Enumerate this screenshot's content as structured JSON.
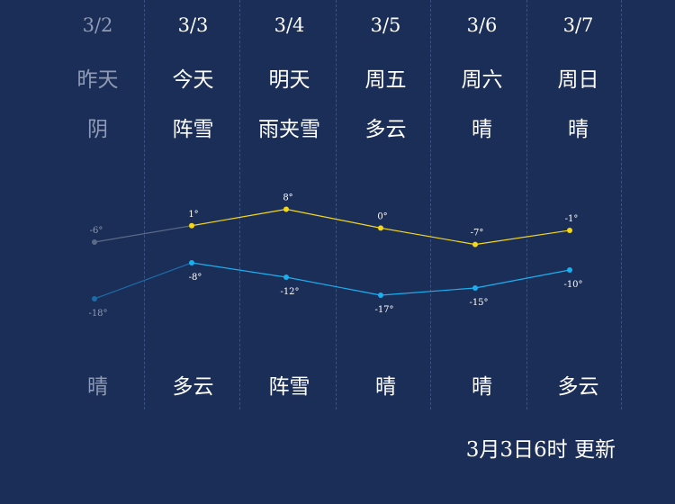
{
  "days": [
    {
      "date": "3/2",
      "name": "昨天",
      "day_cond": "阴",
      "night_cond": "晴",
      "past": true
    },
    {
      "date": "3/3",
      "name": "今天",
      "day_cond": "阵雪",
      "night_cond": "多云",
      "past": false
    },
    {
      "date": "3/4",
      "name": "明天",
      "day_cond": "雨夹雪",
      "night_cond": "阵雪",
      "past": false
    },
    {
      "date": "3/5",
      "name": "周五",
      "day_cond": "多云",
      "night_cond": "晴",
      "past": false
    },
    {
      "date": "3/6",
      "name": "周六",
      "day_cond": "晴",
      "night_cond": "晴",
      "past": false
    },
    {
      "date": "3/7",
      "name": "周日",
      "day_cond": "晴",
      "night_cond": "多云",
      "past": false
    }
  ],
  "chart_data": {
    "type": "line",
    "categories": [
      "3/2",
      "3/3",
      "3/4",
      "3/5",
      "3/6",
      "3/7"
    ],
    "series": [
      {
        "values": [
          -6,
          1,
          8,
          0,
          -7,
          -1
        ],
        "labels": [
          "-6°",
          "1°",
          "8°",
          "0°",
          "-7°",
          "-1°"
        ],
        "color": "#f5d716"
      },
      {
        "values": [
          -18,
          -8,
          -12,
          -17,
          -15,
          -10
        ],
        "labels": [
          "-18°",
          "-8°",
          "-12°",
          "-17°",
          "-15°",
          "-10°"
        ],
        "color": "#1ab0f0"
      }
    ],
    "past_color": "#5b6a86",
    "past_low_color": "#1d6aa8"
  },
  "footer": {
    "updated": "3月3日6时 更新"
  }
}
